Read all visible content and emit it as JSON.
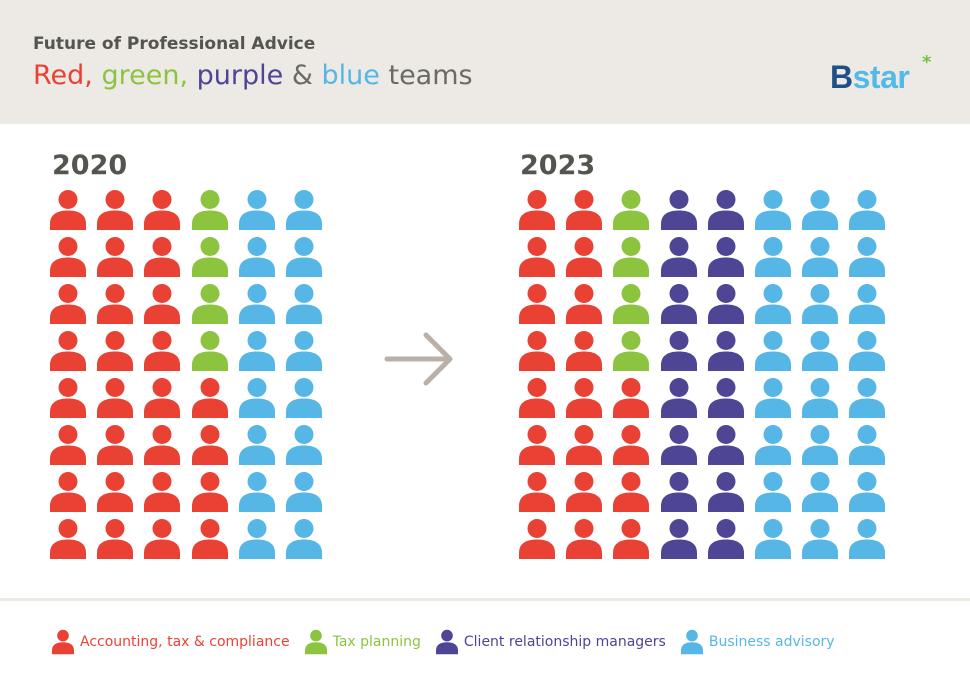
{
  "header": {
    "kicker": "Future of Professional Advice",
    "headline": [
      {
        "text": "Red,",
        "color": "#e94234"
      },
      {
        "text": "green,",
        "color": "#8cc440"
      },
      {
        "text": "purple",
        "color": "#4e4595"
      },
      {
        "text": "&",
        "color": "#6b6a65"
      },
      {
        "text": "blue",
        "color": "#56b7e6"
      },
      {
        "text": "teams",
        "color": "#6b6a65"
      }
    ],
    "logo": {
      "text_b": "B",
      "text_rest": "star",
      "star": "*"
    }
  },
  "chart_data": {
    "type": "pictogram",
    "rows_per_column": 8,
    "colors": {
      "accounting": "#e94234",
      "tax": "#8cc440",
      "client": "#4e4595",
      "advisory": "#56b7e6"
    },
    "panels": [
      {
        "year": "2020",
        "columns": [
          [
            "accounting",
            "accounting",
            "accounting",
            "accounting",
            "accounting",
            "accounting",
            "accounting",
            "accounting"
          ],
          [
            "accounting",
            "accounting",
            "accounting",
            "accounting",
            "accounting",
            "accounting",
            "accounting",
            "accounting"
          ],
          [
            "accounting",
            "accounting",
            "accounting",
            "accounting",
            "accounting",
            "accounting",
            "accounting",
            "accounting"
          ],
          [
            "tax",
            "tax",
            "tax",
            "tax",
            "accounting",
            "accounting",
            "accounting",
            "accounting"
          ],
          [
            "advisory",
            "advisory",
            "advisory",
            "advisory",
            "advisory",
            "advisory",
            "advisory",
            "advisory"
          ],
          [
            "advisory",
            "advisory",
            "advisory",
            "advisory",
            "advisory",
            "advisory",
            "advisory",
            "advisory"
          ]
        ]
      },
      {
        "year": "2023",
        "columns": [
          [
            "accounting",
            "accounting",
            "accounting",
            "accounting",
            "accounting",
            "accounting",
            "accounting",
            "accounting"
          ],
          [
            "accounting",
            "accounting",
            "accounting",
            "accounting",
            "accounting",
            "accounting",
            "accounting",
            "accounting"
          ],
          [
            "tax",
            "tax",
            "tax",
            "tax",
            "accounting",
            "accounting",
            "accounting",
            "accounting"
          ],
          [
            "client",
            "client",
            "client",
            "client",
            "client",
            "client",
            "client",
            "client"
          ],
          [
            "client",
            "client",
            "client",
            "client",
            "client",
            "client",
            "client",
            "client"
          ],
          [
            "advisory",
            "advisory",
            "advisory",
            "advisory",
            "advisory",
            "advisory",
            "advisory",
            "advisory"
          ],
          [
            "advisory",
            "advisory",
            "advisory",
            "advisory",
            "advisory",
            "advisory",
            "advisory",
            "advisory"
          ],
          [
            "advisory",
            "advisory",
            "advisory",
            "advisory",
            "advisory",
            "advisory",
            "advisory",
            "advisory"
          ]
        ]
      }
    ],
    "legend": [
      {
        "key": "accounting",
        "label": "Accounting, tax & compliance"
      },
      {
        "key": "tax",
        "label": "Tax planning"
      },
      {
        "key": "client",
        "label": "Client relationship managers"
      },
      {
        "key": "advisory",
        "label": "Business advisory"
      }
    ]
  },
  "arrow": {
    "icon": "arrow-right-icon",
    "color": "#b9b1a8"
  }
}
